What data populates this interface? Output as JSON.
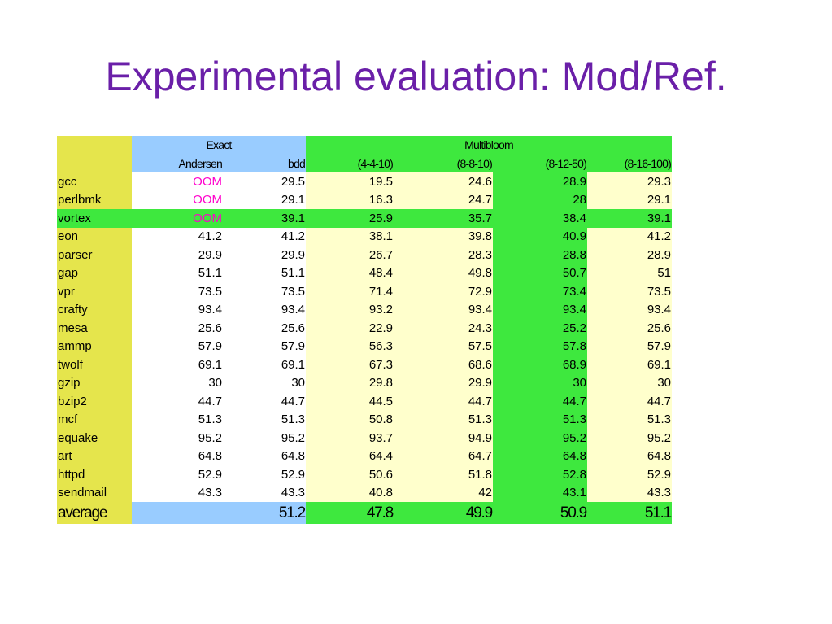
{
  "slide": {
    "title": "Experimental evaluation: Mod/Ref."
  },
  "table": {
    "group_headers": {
      "exact": "Exact",
      "multibloom": "Multibloom"
    },
    "column_headers": [
      "Andersen",
      "bdd",
      "(4-4-10)",
      "(8-8-10)",
      "(8-12-50)",
      "(8-16-100)"
    ],
    "rows": [
      {
        "name": "gcc",
        "values": [
          "OOM",
          "29.5",
          "19.5",
          "24.6",
          "28.9",
          "29.3"
        ]
      },
      {
        "name": "perlbmk",
        "values": [
          "OOM",
          "29.1",
          "16.3",
          "24.7",
          "28",
          "29.1"
        ]
      },
      {
        "name": "vortex",
        "values": [
          "OOM",
          "39.1",
          "25.9",
          "35.7",
          "38.4",
          "39.1"
        ]
      },
      {
        "name": "eon",
        "values": [
          "41.2",
          "41.2",
          "38.1",
          "39.8",
          "40.9",
          "41.2"
        ]
      },
      {
        "name": "parser",
        "values": [
          "29.9",
          "29.9",
          "26.7",
          "28.3",
          "28.8",
          "28.9"
        ]
      },
      {
        "name": "gap",
        "values": [
          "51.1",
          "51.1",
          "48.4",
          "49.8",
          "50.7",
          "51"
        ]
      },
      {
        "name": "vpr",
        "values": [
          "73.5",
          "73.5",
          "71.4",
          "72.9",
          "73.4",
          "73.5"
        ]
      },
      {
        "name": "crafty",
        "values": [
          "93.4",
          "93.4",
          "93.2",
          "93.4",
          "93.4",
          "93.4"
        ]
      },
      {
        "name": "mesa",
        "values": [
          "25.6",
          "25.6",
          "22.9",
          "24.3",
          "25.2",
          "25.6"
        ]
      },
      {
        "name": "ammp",
        "values": [
          "57.9",
          "57.9",
          "56.3",
          "57.5",
          "57.8",
          "57.9"
        ]
      },
      {
        "name": "twolf",
        "values": [
          "69.1",
          "69.1",
          "67.3",
          "68.6",
          "68.9",
          "69.1"
        ]
      },
      {
        "name": "gzip",
        "values": [
          "30",
          "30",
          "29.8",
          "29.9",
          "30",
          "30"
        ]
      },
      {
        "name": "bzip2",
        "values": [
          "44.7",
          "44.7",
          "44.5",
          "44.7",
          "44.7",
          "44.7"
        ]
      },
      {
        "name": "mcf",
        "values": [
          "51.3",
          "51.3",
          "50.8",
          "51.3",
          "51.3",
          "51.3"
        ]
      },
      {
        "name": "equake",
        "values": [
          "95.2",
          "95.2",
          "93.7",
          "94.9",
          "95.2",
          "95.2"
        ]
      },
      {
        "name": "art",
        "values": [
          "64.8",
          "64.8",
          "64.4",
          "64.7",
          "64.8",
          "64.8"
        ]
      },
      {
        "name": "httpd",
        "values": [
          "52.9",
          "52.9",
          "50.6",
          "51.8",
          "52.8",
          "52.9"
        ]
      },
      {
        "name": "sendmail",
        "values": [
          "43.3",
          "43.3",
          "40.8",
          "42",
          "43.1",
          "43.3"
        ]
      }
    ],
    "average": {
      "name": "average",
      "values": [
        "",
        "51.2",
        "47.8",
        "49.9",
        "50.9",
        "51.1"
      ]
    },
    "highlight_color_oom": "#ff00cc"
  }
}
